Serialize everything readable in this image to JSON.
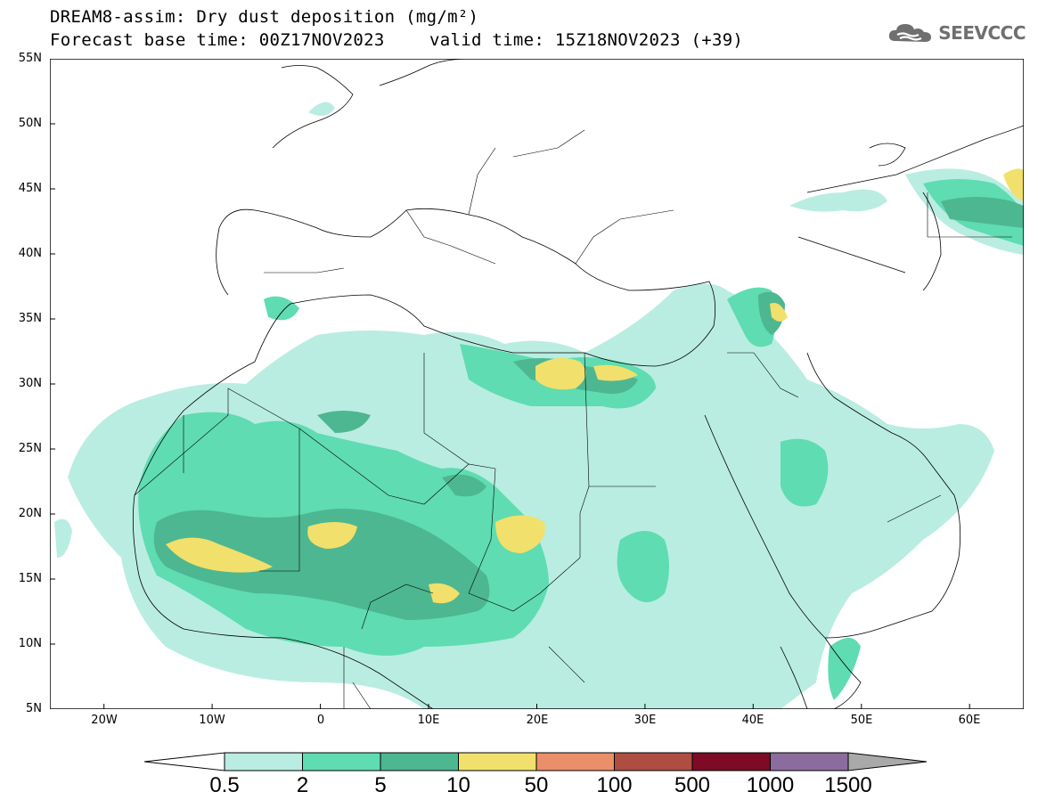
{
  "header": {
    "title": "DREAM8-assim: Dry dust deposition (mg/m²)",
    "base_time": "Forecast base time: 00Z17NOV2023",
    "valid_time": "valid time: 15Z18NOV2023 (+39)"
  },
  "logo": {
    "text": "SEEVCCC",
    "icon": "cloud-icon",
    "color": "#6f6f6f"
  },
  "map": {
    "lat_labels": [
      "55N",
      "50N",
      "45N",
      "40N",
      "35N",
      "30N",
      "25N",
      "20N",
      "15N",
      "10N",
      "5N"
    ],
    "lon_labels": [
      "20W",
      "10W",
      "0",
      "10E",
      "20E",
      "30E",
      "40E",
      "50E",
      "60E"
    ],
    "extent": {
      "lon_min": -25,
      "lon_max": 65,
      "lat_min": 5,
      "lat_max": 55
    }
  },
  "colorbar": {
    "labels": [
      "0.5",
      "2",
      "5",
      "10",
      "50",
      "100",
      "500",
      "1000",
      "1500"
    ],
    "colors": [
      "#ffffff",
      "#b9ede1",
      "#5fdcb1",
      "#4db791",
      "#f1e06b",
      "#e9906a",
      "#ae4d42",
      "#7e0b26",
      "#8c6b9e",
      "#a9a9a9"
    ]
  }
}
